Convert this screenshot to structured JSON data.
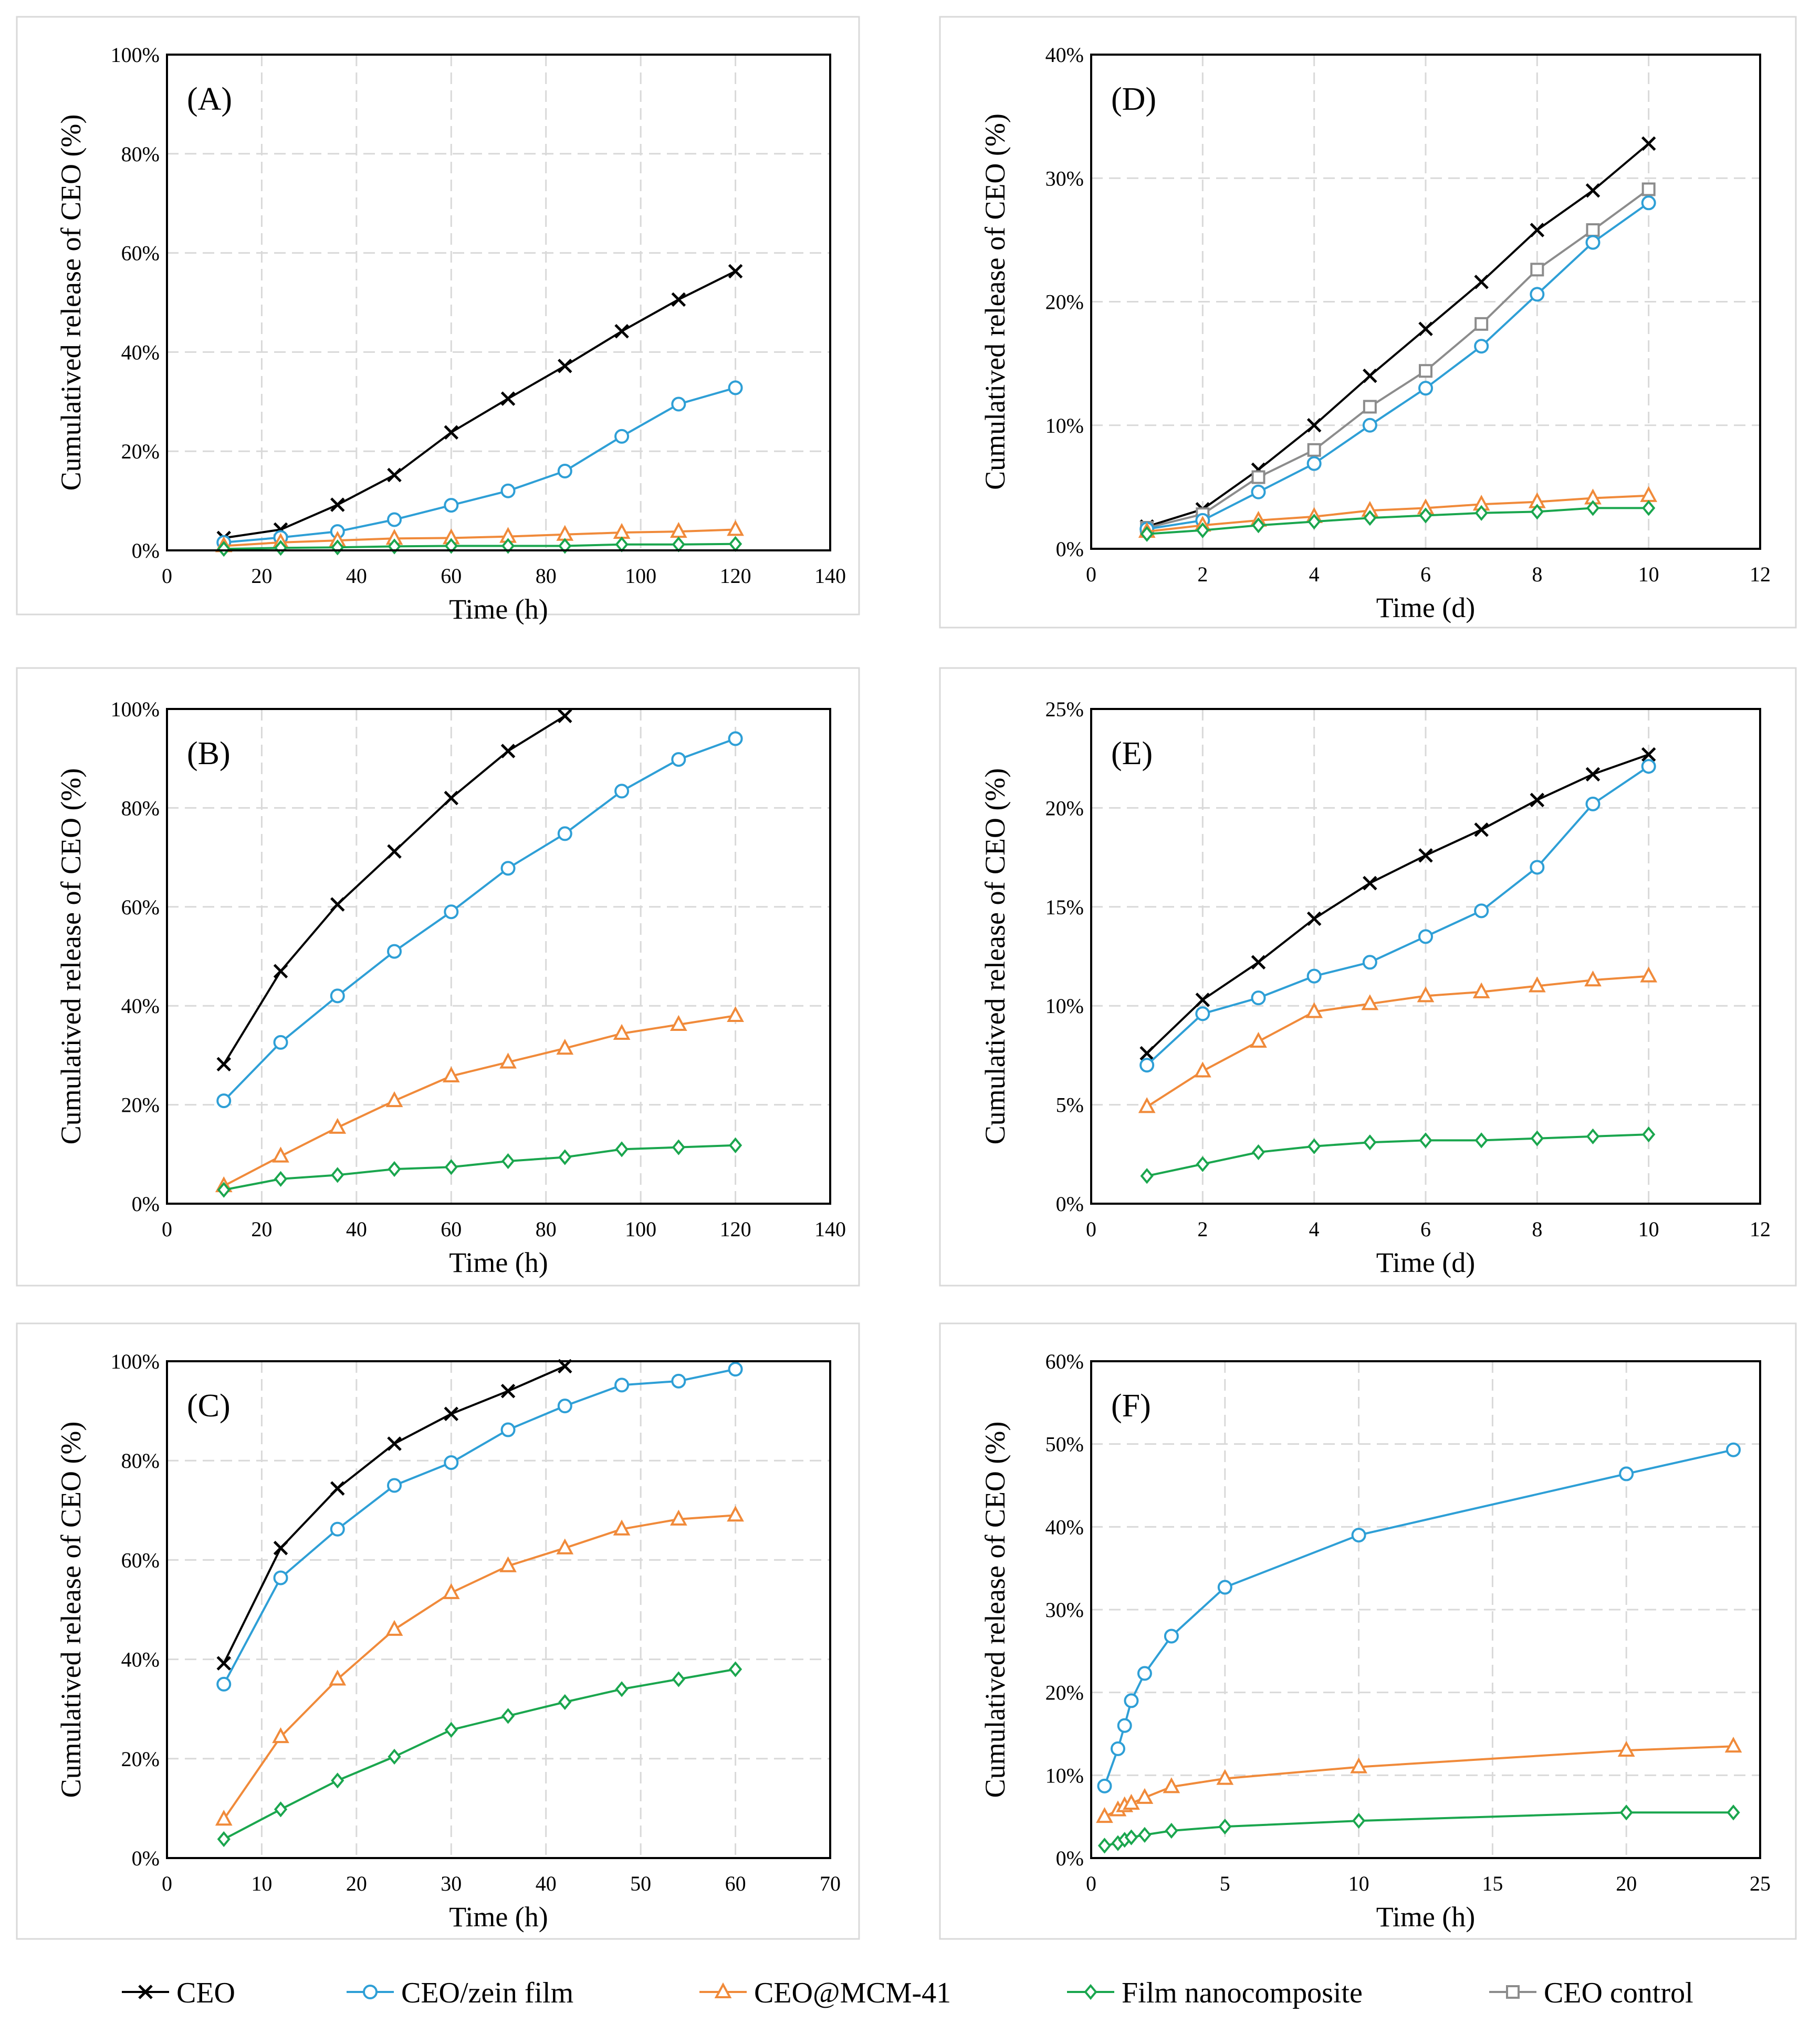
{
  "legend": [
    {
      "key": "ceo",
      "label": "CEO",
      "color": "#000000",
      "marker": "x"
    },
    {
      "key": "zein",
      "label": "CEO/zein film",
      "color": "#2e9fd6",
      "marker": "circle"
    },
    {
      "key": "mcm",
      "label": "CEO@MCM-41",
      "color": "#f08a3a",
      "marker": "triangle"
    },
    {
      "key": "nano",
      "label": "Film nanocomposite",
      "color": "#1aa64e",
      "marker": "diamond"
    },
    {
      "key": "control",
      "label": "CEO control",
      "color": "#8c8c8c",
      "marker": "square"
    }
  ],
  "chart_data": [
    {
      "id": "A",
      "type": "line",
      "title": "(A)",
      "xlabel": "Time  (h)",
      "ylabel": "Cumulatived  release of CEO (%)",
      "xlim": [
        0,
        140
      ],
      "xticks": [
        0,
        20,
        40,
        60,
        80,
        100,
        120,
        140
      ],
      "ylim": [
        0,
        100
      ],
      "yticks": [
        0,
        20,
        40,
        60,
        80,
        100
      ],
      "yformat": "percent",
      "grid": true,
      "series": [
        {
          "key": "ceo",
          "name": "CEO",
          "x": [
            12,
            24,
            36,
            48,
            60,
            72,
            84,
            96,
            108,
            120
          ],
          "values": [
            2.5,
            4.2,
            9.2,
            15.2,
            23.8,
            30.6,
            37.2,
            44.2,
            50.6,
            56.3
          ]
        },
        {
          "key": "zein",
          "name": "CEO/zein film",
          "x": [
            12,
            24,
            36,
            48,
            60,
            72,
            84,
            96,
            108,
            120
          ],
          "values": [
            1.6,
            2.6,
            3.8,
            6.2,
            9.1,
            12.0,
            16.0,
            23.0,
            29.5,
            32.8
          ]
        },
        {
          "key": "mcm",
          "name": "CEO@MCM-41",
          "x": [
            12,
            24,
            36,
            48,
            60,
            72,
            84,
            96,
            108,
            120
          ],
          "values": [
            0.9,
            1.6,
            2.0,
            2.4,
            2.5,
            2.8,
            3.2,
            3.6,
            3.8,
            4.2
          ]
        },
        {
          "key": "nano",
          "name": "Film nanocomposite",
          "x": [
            12,
            24,
            36,
            48,
            60,
            72,
            84,
            96,
            108,
            120
          ],
          "values": [
            0.3,
            0.5,
            0.6,
            0.8,
            0.9,
            0.9,
            0.9,
            1.2,
            1.2,
            1.3
          ]
        }
      ]
    },
    {
      "id": "D",
      "type": "line",
      "title": "(D)",
      "xlabel": "Time  (d)",
      "ylabel": "Cumulatived  release of CEO (%)",
      "xlim": [
        0,
        12
      ],
      "xticks": [
        0,
        2,
        4,
        6,
        8,
        10,
        12
      ],
      "ylim": [
        0,
        40
      ],
      "yticks": [
        0,
        10,
        20,
        30,
        40
      ],
      "yformat": "percent",
      "grid": true,
      "series": [
        {
          "key": "ceo",
          "name": "CEO",
          "x": [
            1,
            2,
            3,
            4,
            5,
            6,
            7,
            8,
            9,
            10
          ],
          "values": [
            1.8,
            3.2,
            6.4,
            10.0,
            14.0,
            17.8,
            21.6,
            25.8,
            29.0,
            32.8
          ]
        },
        {
          "key": "control",
          "name": "CEO control",
          "x": [
            1,
            2,
            3,
            4,
            5,
            6,
            7,
            8,
            9,
            10
          ],
          "values": [
            1.7,
            2.8,
            5.8,
            8.0,
            11.5,
            14.4,
            18.2,
            22.6,
            25.8,
            29.1
          ]
        },
        {
          "key": "zein",
          "name": "CEO/zein film",
          "x": [
            1,
            2,
            3,
            4,
            5,
            6,
            7,
            8,
            9,
            10
          ],
          "values": [
            1.6,
            2.3,
            4.6,
            6.9,
            10.0,
            13.0,
            16.4,
            20.6,
            24.8,
            28.0
          ]
        },
        {
          "key": "mcm",
          "name": "CEO@MCM-41",
          "x": [
            1,
            2,
            3,
            4,
            5,
            6,
            7,
            8,
            9,
            10
          ],
          "values": [
            1.4,
            1.9,
            2.3,
            2.6,
            3.1,
            3.3,
            3.6,
            3.8,
            4.1,
            4.3
          ]
        },
        {
          "key": "nano",
          "name": "Film nanocomposite",
          "x": [
            1,
            2,
            3,
            4,
            5,
            6,
            7,
            8,
            9,
            10
          ],
          "values": [
            1.2,
            1.5,
            1.9,
            2.2,
            2.5,
            2.7,
            2.9,
            3.0,
            3.3,
            3.3
          ]
        }
      ]
    },
    {
      "id": "B",
      "type": "line",
      "title": "(B)",
      "xlabel": "Time  (h)",
      "ylabel": "Cumulatived  release of CEO (%)",
      "xlim": [
        0,
        140
      ],
      "xticks": [
        0,
        20,
        40,
        60,
        80,
        100,
        120,
        140
      ],
      "ylim": [
        0,
        100
      ],
      "yticks": [
        0,
        20,
        40,
        60,
        80,
        100
      ],
      "yformat": "percent",
      "grid": true,
      "series": [
        {
          "key": "ceo",
          "name": "CEO",
          "x": [
            12,
            24,
            36,
            48,
            60,
            72,
            84
          ],
          "values": [
            28.2,
            47.0,
            60.5,
            71.2,
            82.0,
            91.5,
            98.6
          ]
        },
        {
          "key": "zein",
          "name": "CEO/zein film",
          "x": [
            12,
            24,
            36,
            48,
            60,
            72,
            84,
            96,
            108,
            120
          ],
          "values": [
            20.8,
            32.6,
            42.0,
            51.0,
            59.0,
            67.8,
            74.8,
            83.4,
            89.8,
            94.0
          ]
        },
        {
          "key": "mcm",
          "name": "CEO@MCM-41",
          "x": [
            12,
            24,
            36,
            48,
            60,
            72,
            84,
            96,
            108,
            120
          ],
          "values": [
            3.6,
            9.6,
            15.4,
            20.8,
            25.8,
            28.6,
            31.4,
            34.4,
            36.2,
            38.0
          ]
        },
        {
          "key": "nano",
          "name": "Film nanocomposite",
          "x": [
            12,
            24,
            36,
            48,
            60,
            72,
            84,
            96,
            108,
            120
          ],
          "values": [
            2.8,
            5.0,
            5.8,
            7.0,
            7.4,
            8.6,
            9.4,
            11.0,
            11.4,
            11.8
          ]
        }
      ]
    },
    {
      "id": "E",
      "type": "line",
      "title": "(E)",
      "xlabel": "Time  (d)",
      "ylabel": "Cumulatived  release of CEO (%)",
      "xlim": [
        0,
        12
      ],
      "xticks": [
        0,
        2,
        4,
        6,
        8,
        10,
        12
      ],
      "ylim": [
        0,
        25
      ],
      "yticks": [
        0,
        5,
        10,
        15,
        20,
        25
      ],
      "yformat": "percent",
      "grid": true,
      "series": [
        {
          "key": "ceo",
          "name": "CEO",
          "x": [
            1,
            2,
            3,
            4,
            5,
            6,
            7,
            8,
            9,
            10
          ],
          "values": [
            7.6,
            10.3,
            12.2,
            14.4,
            16.2,
            17.6,
            18.9,
            20.4,
            21.7,
            22.7
          ]
        },
        {
          "key": "zein",
          "name": "CEO/zein film",
          "x": [
            1,
            2,
            3,
            4,
            5,
            6,
            7,
            8,
            9,
            10
          ],
          "values": [
            7.0,
            9.6,
            10.4,
            11.5,
            12.2,
            13.5,
            14.8,
            17.0,
            20.2,
            22.1
          ]
        },
        {
          "key": "mcm",
          "name": "CEO@MCM-41",
          "x": [
            1,
            2,
            3,
            4,
            5,
            6,
            7,
            8,
            9,
            10
          ],
          "values": [
            4.9,
            6.7,
            8.2,
            9.7,
            10.1,
            10.5,
            10.7,
            11.0,
            11.3,
            11.5
          ]
        },
        {
          "key": "nano",
          "name": "Film nanocomposite",
          "x": [
            1,
            2,
            3,
            4,
            5,
            6,
            7,
            8,
            9,
            10
          ],
          "values": [
            1.4,
            2.0,
            2.6,
            2.9,
            3.1,
            3.2,
            3.2,
            3.3,
            3.4,
            3.5
          ]
        }
      ]
    },
    {
      "id": "C",
      "type": "line",
      "title": "(C)",
      "xlabel": "Time  (h)",
      "ylabel": "Cumulatived  release of CEO (%)",
      "xlim": [
        0,
        70
      ],
      "xticks": [
        0,
        10,
        20,
        30,
        40,
        50,
        60,
        70
      ],
      "ylim": [
        0,
        100
      ],
      "yticks": [
        0,
        20,
        40,
        60,
        80,
        100
      ],
      "yformat": "percent",
      "grid": true,
      "series": [
        {
          "key": "ceo",
          "name": "CEO",
          "x": [
            6,
            12,
            18,
            24,
            30,
            36,
            42
          ],
          "values": [
            39.2,
            62.4,
            74.4,
            83.4,
            89.4,
            94.0,
            99.0
          ]
        },
        {
          "key": "zein",
          "name": "CEO/zein film",
          "x": [
            6,
            12,
            18,
            24,
            30,
            36,
            42,
            48,
            54,
            60
          ],
          "values": [
            35.0,
            56.4,
            66.2,
            75.0,
            79.6,
            86.2,
            91.0,
            95.2,
            96.0,
            98.4
          ]
        },
        {
          "key": "mcm",
          "name": "CEO@MCM-41",
          "x": [
            6,
            12,
            18,
            24,
            30,
            36,
            42,
            48,
            54,
            60
          ],
          "values": [
            7.8,
            24.4,
            36.0,
            46.0,
            53.4,
            58.8,
            62.4,
            66.2,
            68.2,
            69.0
          ]
        },
        {
          "key": "nano",
          "name": "Film nanocomposite",
          "x": [
            6,
            12,
            18,
            24,
            30,
            36,
            42,
            48,
            54,
            60
          ],
          "values": [
            3.8,
            9.8,
            15.6,
            20.4,
            25.8,
            28.6,
            31.4,
            34.0,
            36.0,
            38.0
          ]
        }
      ]
    },
    {
      "id": "F",
      "type": "line",
      "title": "(F)",
      "xlabel": "Time  (h)",
      "ylabel": "Cumulatived  release of CEO (%)",
      "xlim": [
        0,
        25
      ],
      "xticks": [
        0,
        5,
        10,
        15,
        20,
        25
      ],
      "ylim": [
        0,
        60
      ],
      "yticks": [
        0,
        10,
        20,
        30,
        40,
        50,
        60
      ],
      "yformat": "percent",
      "grid": true,
      "series": [
        {
          "key": "zein",
          "name": "CEO/zein film",
          "x": [
            0.5,
            1,
            1.25,
            1.5,
            2,
            3,
            5,
            10,
            20,
            24
          ],
          "values": [
            8.7,
            13.2,
            16.0,
            19.0,
            22.3,
            26.8,
            32.7,
            39.0,
            46.4,
            49.3
          ]
        },
        {
          "key": "mcm",
          "name": "CEO@MCM-41",
          "x": [
            0.5,
            1,
            1.25,
            1.5,
            2,
            3,
            5,
            10,
            20,
            24
          ],
          "values": [
            5.0,
            5.8,
            6.3,
            6.6,
            7.3,
            8.6,
            9.6,
            11.0,
            13.0,
            13.5
          ]
        },
        {
          "key": "nano",
          "name": "Film nanocomposite",
          "x": [
            0.5,
            1,
            1.25,
            1.5,
            2,
            3,
            5,
            10,
            20,
            24
          ],
          "values": [
            1.5,
            1.8,
            2.2,
            2.5,
            2.8,
            3.3,
            3.8,
            4.5,
            5.5,
            5.5
          ]
        }
      ]
    }
  ]
}
